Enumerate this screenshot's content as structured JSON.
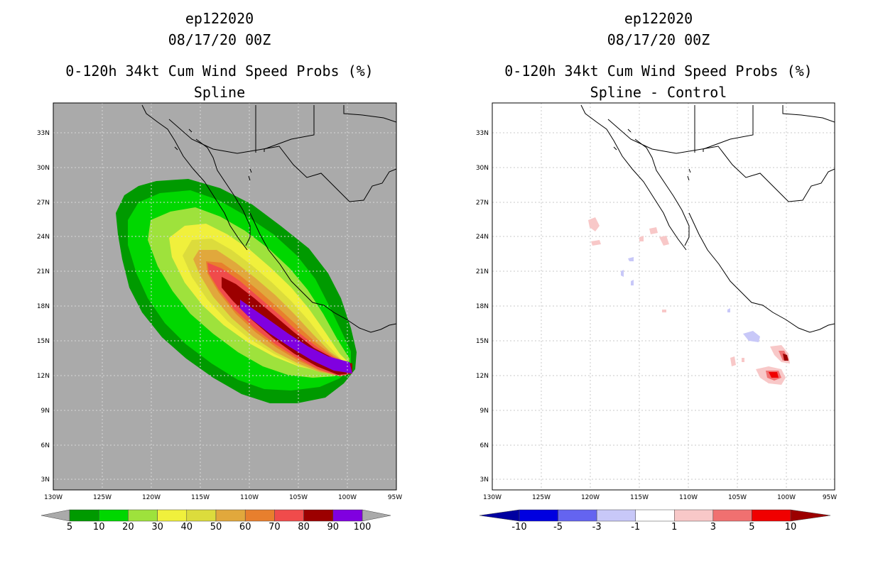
{
  "panels": [
    {
      "id": "left",
      "title_lines": [
        "ep122020",
        "08/17/20 00Z",
        "0-120h 34kt Cum Wind Speed Probs (%)",
        "Spline"
      ],
      "background": "#aaaaaa",
      "colorbar": {
        "labels": [
          "5",
          "10",
          "20",
          "30",
          "40",
          "50",
          "60",
          "70",
          "80",
          "90",
          "100"
        ],
        "colors": [
          "#009a00",
          "#00d700",
          "#9ee23c",
          "#f0f03c",
          "#dcdc3c",
          "#e1a83c",
          "#e87f2d",
          "#f04b4b",
          "#9c0000",
          "#8000e0"
        ],
        "end_low": "#aaaaaa",
        "end_high": "#aaaaaa"
      }
    },
    {
      "id": "right",
      "title_lines": [
        "ep122020",
        "08/17/20 00Z",
        "0-120h 34kt Cum Wind Speed Probs (%)",
        "Spline - Control"
      ],
      "background": "#ffffff",
      "colorbar": {
        "labels": [
          "-10",
          "-5",
          "-3",
          "-1",
          "1",
          "3",
          "5",
          "10"
        ],
        "colors": [
          "#0000e0",
          "#6464f0",
          "#c8c8f8",
          "#ffffff",
          "#f8c8c8",
          "#f07070",
          "#f00000"
        ],
        "end_low": "#0000a0",
        "end_high": "#9c0000"
      }
    }
  ],
  "axes": {
    "x_ticks": [
      "130W",
      "125W",
      "120W",
      "115W",
      "110W",
      "105W",
      "100W",
      "95W"
    ],
    "y_ticks": [
      "33N",
      "30N",
      "27N",
      "24N",
      "21N",
      "18N",
      "15N",
      "12N",
      "9N",
      "6N",
      "3N"
    ]
  }
}
